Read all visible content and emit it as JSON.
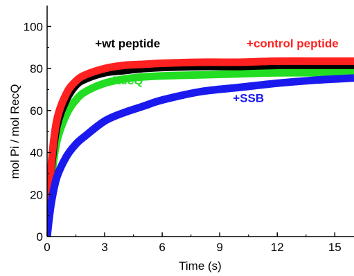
{
  "chart_data": {
    "type": "line",
    "xlabel": "Time (s)",
    "ylabel": "mol Pi / mol RecQ",
    "xlim": [
      0,
      16
    ],
    "ylim": [
      0,
      110
    ],
    "xticks": [
      0,
      3,
      6,
      9,
      12,
      15
    ],
    "yticks": [
      0,
      20,
      40,
      60,
      80,
      100
    ],
    "grid": false,
    "series": [
      {
        "name": "RecQ",
        "color": "#22dd22",
        "x": [
          0,
          0.2,
          0.5,
          1,
          1.5,
          2,
          3,
          4,
          5,
          6,
          8,
          10,
          12,
          14,
          16
        ],
        "y": [
          0,
          25,
          45,
          58,
          65,
          69,
          73,
          75,
          76,
          76.5,
          77,
          77.5,
          78,
          78,
          78
        ]
      },
      {
        "name": "+wt peptide",
        "color": "#000000",
        "x": [
          0,
          0.2,
          0.5,
          1,
          1.5,
          2,
          3,
          4,
          5,
          6,
          8,
          10,
          12,
          14,
          16
        ],
        "y": [
          0,
          30,
          52,
          65,
          72,
          75,
          78,
          79,
          80,
          80.5,
          81,
          81,
          81.5,
          81.5,
          81.5
        ]
      },
      {
        "name": "+control peptide",
        "color": "#ff2020",
        "x": [
          0,
          0.2,
          0.5,
          1,
          1.5,
          2,
          3,
          4,
          5,
          6,
          8,
          10,
          12,
          14,
          16
        ],
        "y": [
          0,
          32,
          55,
          68,
          74,
          77,
          80,
          81.5,
          82,
          82.5,
          83,
          83,
          83.5,
          83.5,
          83.5
        ]
      },
      {
        "name": "+SSB",
        "color": "#1a1aee",
        "x": [
          0,
          0.2,
          0.5,
          1,
          1.5,
          2,
          3,
          4,
          5,
          6,
          8,
          10,
          12,
          14,
          16
        ],
        "y": [
          0,
          15,
          28,
          38,
          44,
          48,
          55,
          59,
          62,
          65,
          69,
          71,
          73,
          74.5,
          75.5
        ]
      }
    ],
    "annotations": [
      {
        "text": "+wt peptide",
        "color": "#000000",
        "x": 4.2,
        "y": 90
      },
      {
        "text": "+control peptide",
        "color": "#ff2020",
        "x": 12.8,
        "y": 90
      },
      {
        "text": "RecQ",
        "color": "#22dd22",
        "x": 4.2,
        "y": 72.5
      },
      {
        "text": "+SSB",
        "color": "#1a1aee",
        "x": 10.5,
        "y": 64
      }
    ]
  }
}
